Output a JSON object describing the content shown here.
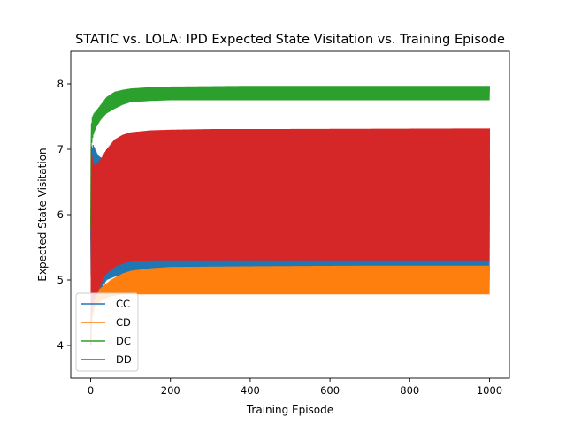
{
  "chart_data": {
    "type": "line",
    "title": "STATIC vs. LOLA: IPD Expected State Visitation vs. Training Episode",
    "xlabel": "Training Episode",
    "ylabel": "Expected State Visitation",
    "xlim": [
      -50,
      1050
    ],
    "ylim": [
      3.5,
      8.5
    ],
    "xticks": [
      0,
      200,
      400,
      600,
      800,
      1000
    ],
    "yticks": [
      4,
      5,
      6,
      7,
      8
    ],
    "grid": false,
    "legend_loc": "lower left",
    "note": "Each series oscillates between two envelopes every episode; series given as upper/lower envelope values at sampled episodes.",
    "series": [
      {
        "name": "CC",
        "color": "#1f77b4",
        "x": [
          0,
          2,
          5,
          10,
          15,
          20,
          30,
          40,
          60,
          100,
          200,
          400,
          1000
        ],
        "upper": [
          5.8,
          6.9,
          7.08,
          7.02,
          6.95,
          6.9,
          6.85,
          6.85,
          6.85,
          6.85,
          6.85,
          6.85,
          6.85
        ],
        "lower": [
          5.8,
          4.3,
          4.45,
          4.6,
          4.7,
          4.8,
          4.9,
          5.0,
          5.05,
          5.1,
          5.15,
          5.15,
          5.15
        ]
      },
      {
        "name": "CD",
        "color": "#ff7f0e",
        "x": [
          0,
          2,
          5,
          10,
          20,
          30,
          50,
          80,
          100,
          150,
          200,
          400,
          700,
          1000
        ],
        "upper": [
          4.0,
          6.5,
          5.3,
          4.9,
          4.85,
          4.9,
          5.0,
          5.1,
          5.14,
          5.18,
          5.2,
          5.21,
          5.22,
          5.22
        ],
        "lower": [
          4.0,
          4.3,
          4.5,
          4.6,
          4.65,
          4.7,
          4.75,
          4.78,
          4.78,
          4.78,
          4.78,
          4.78,
          4.78,
          4.78
        ]
      },
      {
        "name": "DC",
        "color": "#2ca02c",
        "x": [
          0,
          1,
          2,
          4,
          8,
          15,
          25,
          40,
          60,
          80,
          100,
          150,
          200,
          400,
          700,
          1000
        ],
        "upper": [
          5.8,
          8.33,
          7.4,
          7.5,
          7.55,
          7.6,
          7.68,
          7.8,
          7.88,
          7.91,
          7.93,
          7.95,
          7.96,
          7.97,
          7.97,
          7.97
        ],
        "lower": [
          5.8,
          7.0,
          7.05,
          7.15,
          7.25,
          7.35,
          7.45,
          7.55,
          7.62,
          7.68,
          7.72,
          7.74,
          7.75,
          7.75,
          7.75,
          7.75
        ]
      },
      {
        "name": "DD",
        "color": "#d62728",
        "x": [
          0,
          1,
          2,
          5,
          10,
          20,
          30,
          40,
          60,
          80,
          100,
          150,
          200,
          300,
          400,
          1000
        ],
        "upper": [
          4.0,
          7.4,
          7.05,
          6.8,
          6.75,
          6.8,
          6.9,
          7.0,
          7.15,
          7.22,
          7.26,
          7.29,
          7.3,
          7.31,
          7.31,
          7.32
        ],
        "lower": [
          4.0,
          4.2,
          4.5,
          4.6,
          4.7,
          4.85,
          5.0,
          5.1,
          5.2,
          5.25,
          5.28,
          5.3,
          5.3,
          5.3,
          5.3,
          5.3
        ]
      }
    ]
  }
}
